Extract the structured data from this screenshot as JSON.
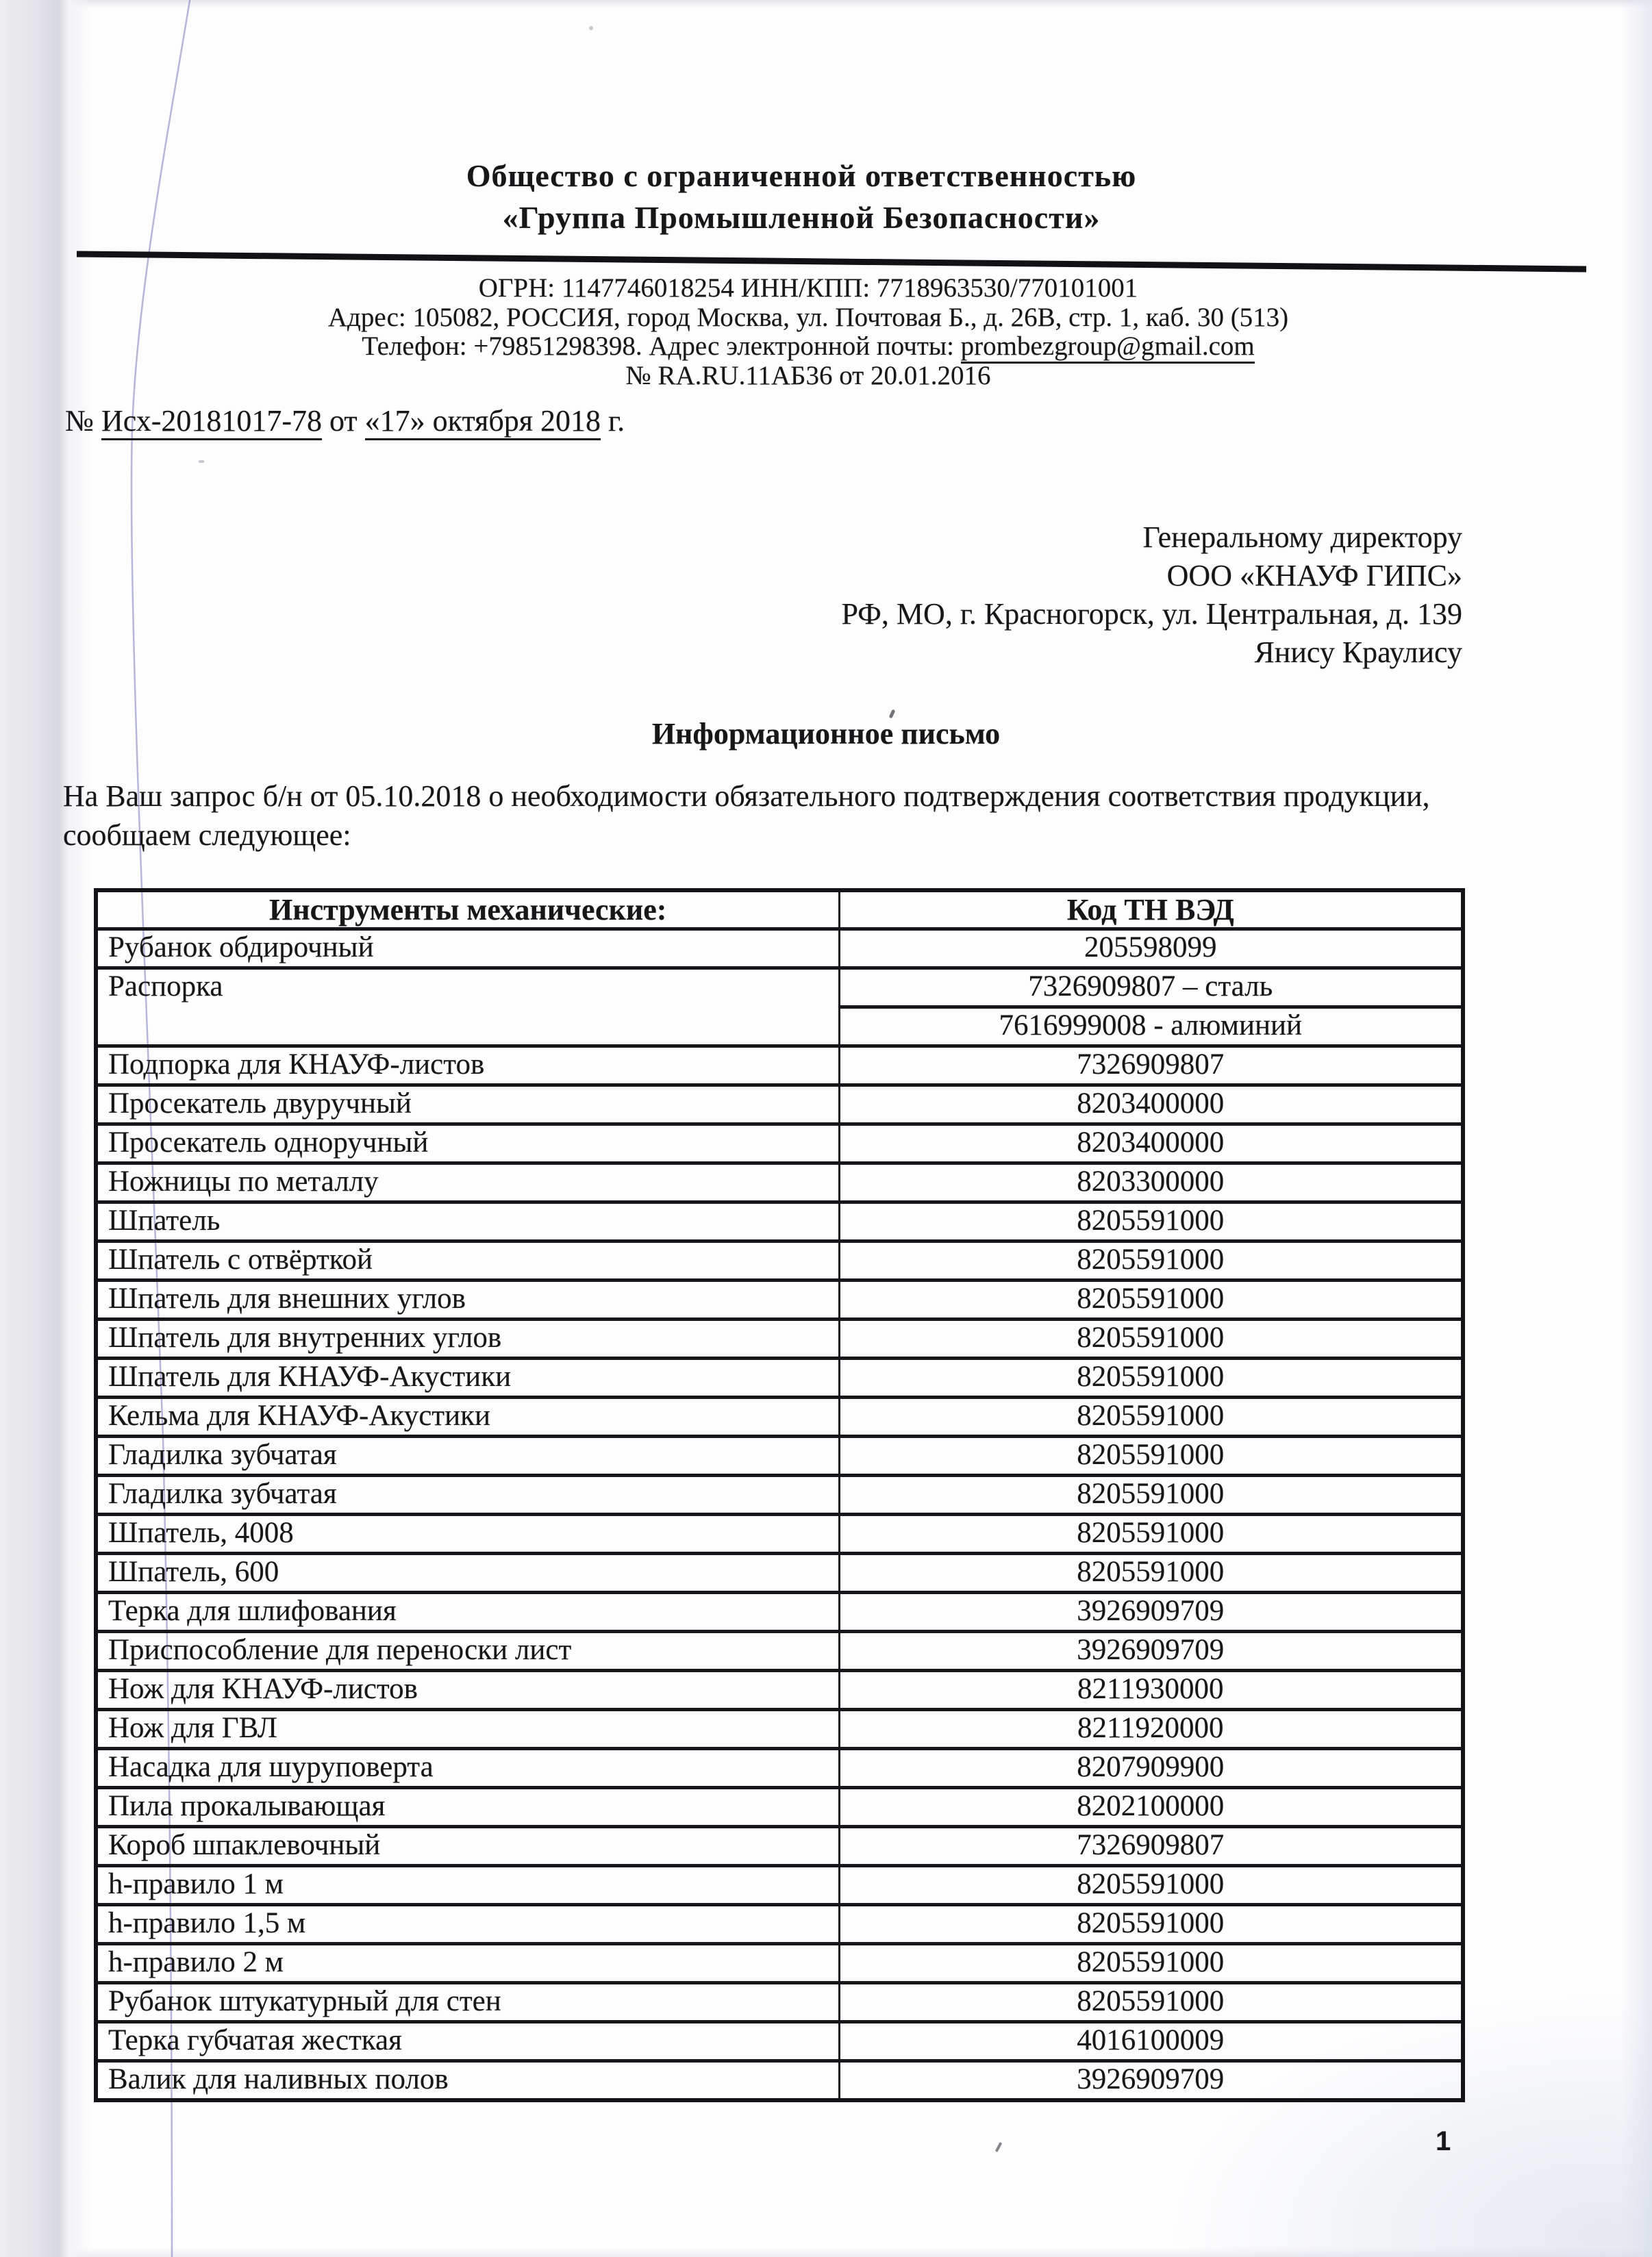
{
  "letterhead": {
    "company_line1": "Общество с ограниченной ответственностью",
    "company_line2": "«Группа Промышленной Безопасности»",
    "ogrn_line": "ОГРН: 1147746018254 ИНН/КПП: 7718963530/770101001",
    "address_line": "Адрес: 105082, РОССИЯ, город Москва, ул. Почтовая Б., д. 26В, стр. 1, каб. 30 (513)",
    "phone_email_prefix": "Телефон: +79851298398. Адрес электронной почты: ",
    "email": "prombezgroup@gmail.com",
    "certificate_line": "№ RA.RU.11АБ36 от 20.01.2016"
  },
  "reference": {
    "prefix": "№ ",
    "number": "Исх-20181017-78",
    "middle": " от ",
    "date": "«17» октября 2018",
    "suffix": " г."
  },
  "recipient": {
    "lines": [
      "Генеральному директору",
      "ООО «КНАУФ ГИПС»",
      "РФ, МО, г. Красногорск, ул. Центральная, д. 139",
      "Янису Краулису"
    ]
  },
  "subject": "Информационное письмо",
  "body": {
    "line1": "На Ваш запрос б/н от 05.10.2018 о необходимости обязательного подтверждения соответствия продукции,",
    "line2": "сообщаем следующее:"
  },
  "table": {
    "headers": [
      "Инструменты механические:",
      "Код ТН ВЭД"
    ],
    "rows": [
      {
        "name": "Рубанок обдирочный",
        "codes": [
          "205598099"
        ]
      },
      {
        "name": "Распорка",
        "codes": [
          "7326909807 – сталь",
          "7616999008 - алюминий"
        ]
      },
      {
        "name": "Подпорка для КНАУФ-листов",
        "codes": [
          "7326909807"
        ]
      },
      {
        "name": "Просекатель двуручный",
        "codes": [
          "8203400000"
        ]
      },
      {
        "name": "Просекатель одноручный",
        "codes": [
          "8203400000"
        ]
      },
      {
        "name": "Ножницы по металлу",
        "codes": [
          "8203300000"
        ]
      },
      {
        "name": "Шпатель",
        "codes": [
          "8205591000"
        ]
      },
      {
        "name": "Шпатель с отвёрткой",
        "codes": [
          "8205591000"
        ]
      },
      {
        "name": "Шпатель для внешних углов",
        "codes": [
          "8205591000"
        ]
      },
      {
        "name": "Шпатель для внутренних углов",
        "codes": [
          "8205591000"
        ]
      },
      {
        "name": "Шпатель для КНАУФ-Акустики",
        "codes": [
          "8205591000"
        ]
      },
      {
        "name": "Кельма для КНАУФ-Акустики",
        "codes": [
          "8205591000"
        ]
      },
      {
        "name": "Гладилка зубчатая",
        "codes": [
          "8205591000"
        ]
      },
      {
        "name": "Гладилка зубчатая",
        "codes": [
          "8205591000"
        ]
      },
      {
        "name": "Шпатель, 4008",
        "codes": [
          "8205591000"
        ]
      },
      {
        "name": "Шпатель, 600",
        "codes": [
          "8205591000"
        ]
      },
      {
        "name": "Терка для шлифования",
        "codes": [
          "3926909709"
        ]
      },
      {
        "name": "Приспособление для переноски лист",
        "codes": [
          "3926909709"
        ]
      },
      {
        "name": "Нож для КНАУФ-листов",
        "codes": [
          "8211930000"
        ]
      },
      {
        "name": "Нож для ГВЛ",
        "codes": [
          "8211920000"
        ]
      },
      {
        "name": "Насадка для шуруповерта",
        "codes": [
          "8207909900"
        ]
      },
      {
        "name": "Пила прокалывающая",
        "codes": [
          "8202100000"
        ]
      },
      {
        "name": "Короб шпаклевочный",
        "codes": [
          "7326909807"
        ]
      },
      {
        "name": "h-правило 1 м",
        "codes": [
          "8205591000"
        ]
      },
      {
        "name": "h-правило 1,5 м",
        "codes": [
          "8205591000"
        ]
      },
      {
        "name": "h-правило 2 м",
        "codes": [
          "8205591000"
        ]
      },
      {
        "name": "Рубанок штукатурный для стен",
        "codes": [
          "8205591000"
        ]
      },
      {
        "name": "Терка губчатая жесткая",
        "codes": [
          "4016100009"
        ]
      },
      {
        "name": "Валик для наливных полов",
        "codes": [
          "3926909709"
        ]
      }
    ]
  },
  "page_number": "1"
}
